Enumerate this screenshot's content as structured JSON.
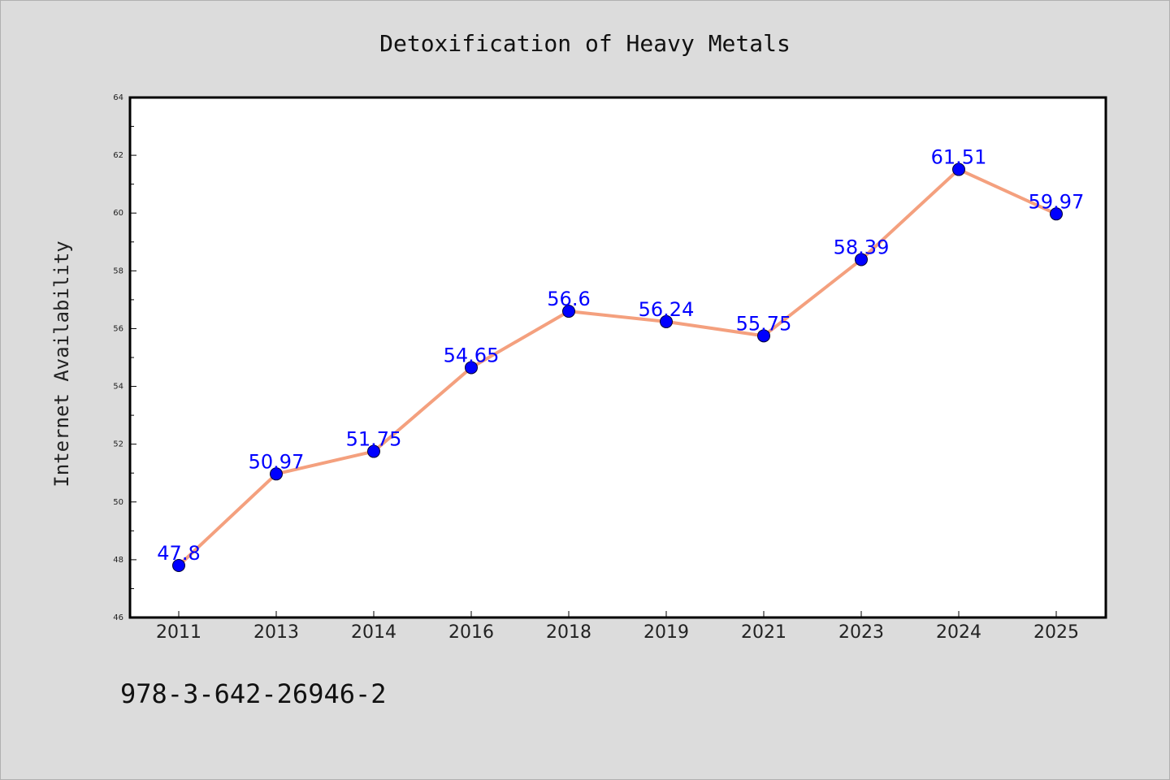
{
  "chart_data": {
    "type": "line",
    "title": "Detoxification of Heavy Metals",
    "xlabel": "",
    "ylabel": "Internet Availability",
    "categories": [
      "2011",
      "2013",
      "2014",
      "2016",
      "2018",
      "2019",
      "2021",
      "2023",
      "2024",
      "2025"
    ],
    "series": [
      {
        "values": [
          47.8,
          50.97,
          51.75,
          54.65,
          56.6,
          56.24,
          55.75,
          58.39,
          61.51,
          59.97
        ],
        "labels": [
          "47.8",
          "50.97",
          "51.75",
          "54.65",
          "56.6",
          "56.24",
          "55.75",
          "58.39",
          "61.51",
          "59.97"
        ]
      }
    ],
    "ylim": [
      46,
      64
    ],
    "yticks": [
      46,
      48,
      50,
      52,
      54,
      56,
      58,
      60,
      62,
      64
    ],
    "line_color": "#f4a07e",
    "marker_color": "#0000ff",
    "label_color": "#0000ff",
    "grid": false,
    "background": "#dcdcdc",
    "plot_background": "#ffffff"
  },
  "footer": {
    "text": "978-3-642-26946-2"
  }
}
